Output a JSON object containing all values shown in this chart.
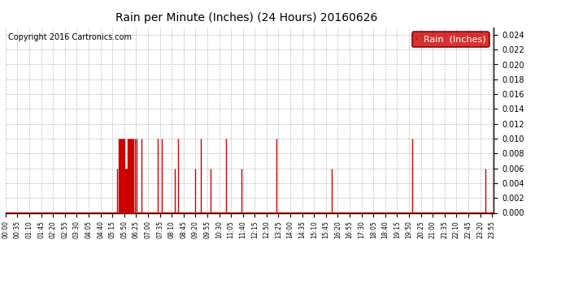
{
  "title": "Rain per Minute (Inches) (24 Hours) 20160626",
  "copyright": "Copyright 2016 Cartronics.com",
  "legend_label": "Rain  (Inches)",
  "legend_bg": "#cc0000",
  "legend_text_color": "#ffffff",
  "bar_color": "#cc0000",
  "background_color": "#ffffff",
  "grid_color": "#bbbbbb",
  "ylim": [
    0.0,
    0.025
  ],
  "yticks": [
    0.0,
    0.002,
    0.004,
    0.006,
    0.008,
    0.01,
    0.012,
    0.014,
    0.016,
    0.018,
    0.02,
    0.022,
    0.024
  ],
  "x_labels": [
    "00:00",
    "00:35",
    "01:10",
    "01:45",
    "02:20",
    "02:55",
    "03:30",
    "04:05",
    "04:40",
    "05:15",
    "05:50",
    "06:25",
    "07:00",
    "07:35",
    "08:10",
    "08:45",
    "09:20",
    "09:55",
    "10:30",
    "11:05",
    "11:40",
    "12:15",
    "12:50",
    "13:25",
    "14:00",
    "14:35",
    "15:10",
    "15:45",
    "16:20",
    "16:55",
    "17:30",
    "18:05",
    "18:40",
    "19:15",
    "19:50",
    "20:25",
    "21:00",
    "21:35",
    "22:10",
    "22:45",
    "23:20",
    "23:55"
  ],
  "rain_data": [
    {
      "minute": 330,
      "value": 0.006
    },
    {
      "minute": 334,
      "value": 0.01
    },
    {
      "minute": 336,
      "value": 0.01
    },
    {
      "minute": 338,
      "value": 0.01
    },
    {
      "minute": 340,
      "value": 0.01
    },
    {
      "minute": 342,
      "value": 0.01
    },
    {
      "minute": 344,
      "value": 0.01
    },
    {
      "minute": 346,
      "value": 0.01
    },
    {
      "minute": 348,
      "value": 0.01
    },
    {
      "minute": 350,
      "value": 0.01
    },
    {
      "minute": 352,
      "value": 0.006
    },
    {
      "minute": 354,
      "value": 0.006
    },
    {
      "minute": 356,
      "value": 0.006
    },
    {
      "minute": 358,
      "value": 0.006
    },
    {
      "minute": 360,
      "value": 0.01
    },
    {
      "minute": 362,
      "value": 0.01
    },
    {
      "minute": 364,
      "value": 0.01
    },
    {
      "minute": 366,
      "value": 0.01
    },
    {
      "minute": 368,
      "value": 0.01
    },
    {
      "minute": 370,
      "value": 0.01
    },
    {
      "minute": 372,
      "value": 0.01
    },
    {
      "minute": 374,
      "value": 0.01
    },
    {
      "minute": 378,
      "value": 0.01
    },
    {
      "minute": 382,
      "value": 0.01
    },
    {
      "minute": 386,
      "value": 0.01
    },
    {
      "minute": 400,
      "value": 0.01
    },
    {
      "minute": 450,
      "value": 0.01
    },
    {
      "minute": 460,
      "value": 0.01
    },
    {
      "minute": 500,
      "value": 0.006
    },
    {
      "minute": 508,
      "value": 0.01
    },
    {
      "minute": 560,
      "value": 0.006
    },
    {
      "minute": 575,
      "value": 0.01
    },
    {
      "minute": 605,
      "value": 0.006
    },
    {
      "minute": 650,
      "value": 0.01
    },
    {
      "minute": 695,
      "value": 0.006
    },
    {
      "minute": 800,
      "value": 0.01
    },
    {
      "minute": 962,
      "value": 0.006
    },
    {
      "minute": 1200,
      "value": 0.01
    },
    {
      "minute": 1415,
      "value": 0.006
    }
  ],
  "title_fontsize": 10,
  "copyright_fontsize": 7,
  "legend_fontsize": 8,
  "xtick_fontsize": 5.5,
  "ytick_fontsize": 7
}
